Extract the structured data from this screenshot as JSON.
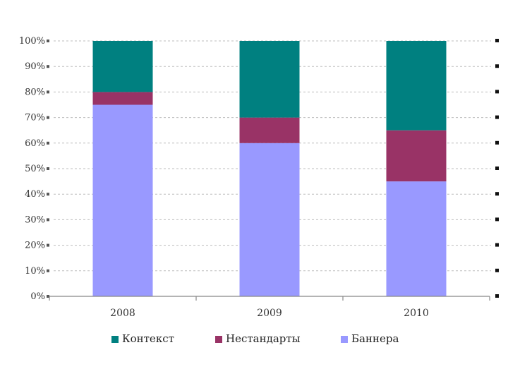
{
  "chart_data": {
    "type": "bar",
    "stacked": true,
    "percent": true,
    "categories": [
      "2008",
      "2009",
      "2010"
    ],
    "series": [
      {
        "name": "Баннера",
        "color": "#9999ff",
        "values": [
          75,
          60,
          45
        ]
      },
      {
        "name": "Нестандарты",
        "color": "#993366",
        "values": [
          5,
          10,
          20
        ]
      },
      {
        "name": "Контекст",
        "color": "#008080",
        "values": [
          20,
          30,
          35
        ]
      }
    ],
    "yticks": [
      "0%",
      "10%",
      "20%",
      "30%",
      "40%",
      "50%",
      "60%",
      "70%",
      "80%",
      "90%",
      "100%"
    ],
    "ylim": [
      0,
      100
    ],
    "grid": true,
    "legend_order": [
      "Контекст",
      "Нестандарты",
      "Баннера"
    ],
    "legend_position": "bottom"
  }
}
